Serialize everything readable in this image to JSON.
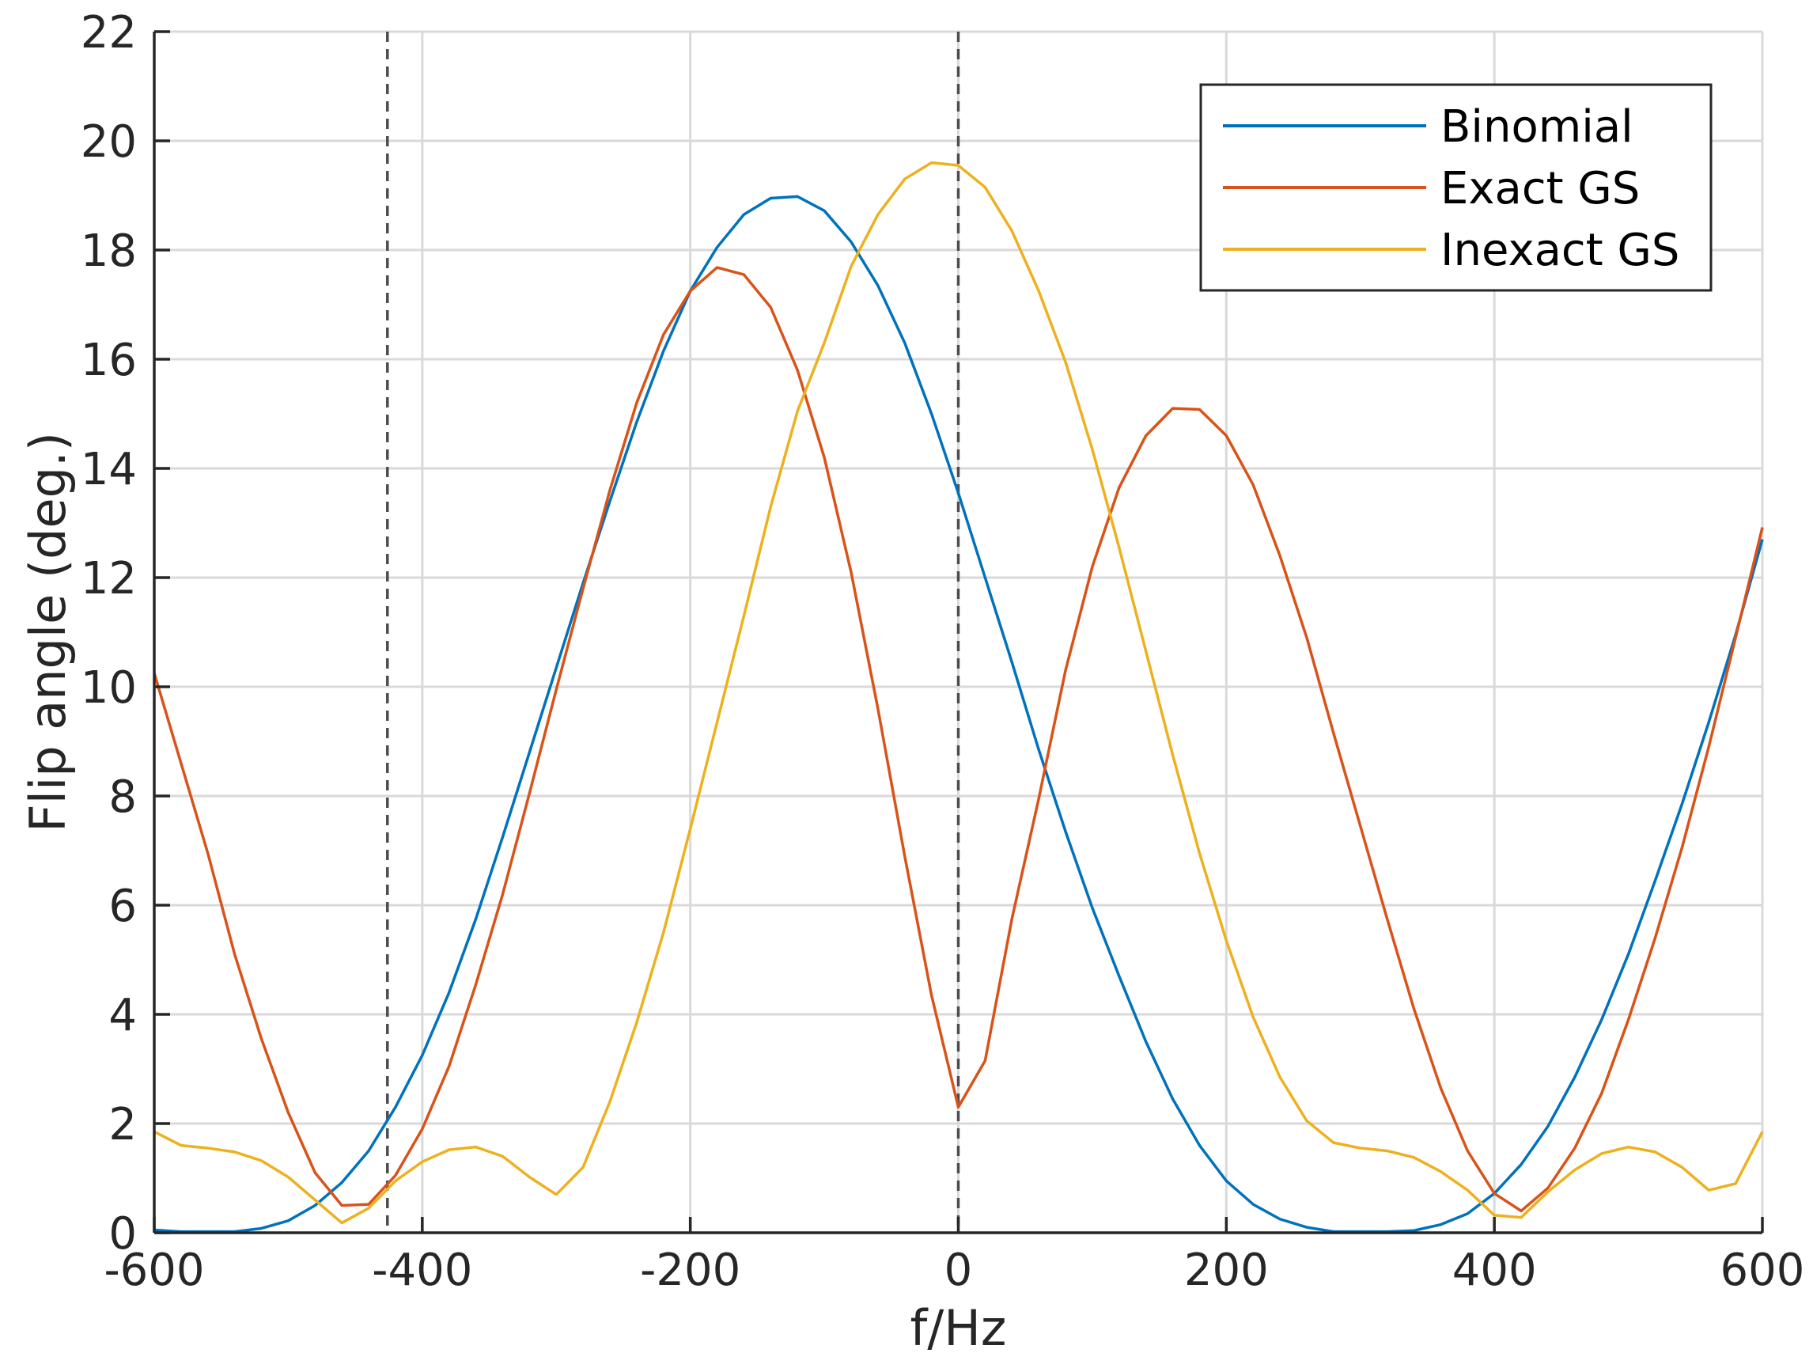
{
  "chart_data": {
    "type": "line",
    "title": "",
    "xlabel": "f/Hz",
    "ylabel": "Flip angle (deg.)",
    "xlim": [
      -600,
      600
    ],
    "ylim": [
      0,
      22
    ],
    "xticks": [
      -600,
      -400,
      -200,
      0,
      200,
      400,
      600
    ],
    "yticks": [
      0,
      2,
      4,
      6,
      8,
      10,
      12,
      14,
      16,
      18,
      20,
      22
    ],
    "xtick_labels": [
      "-600",
      "-400",
      "-200",
      "0",
      "200",
      "400",
      "600"
    ],
    "ytick_labels": [
      "0",
      "2",
      "4",
      "6",
      "8",
      "10",
      "12",
      "14",
      "16",
      "18",
      "20",
      "22"
    ],
    "grid": true,
    "legend_position": "top-right",
    "vertical_dashed_lines": [
      -426,
      0
    ],
    "series": [
      {
        "name": "Binomial",
        "color": "#0072BD",
        "points": [
          [
            -600,
            0.05
          ],
          [
            -580,
            0.02
          ],
          [
            -560,
            0.02
          ],
          [
            -540,
            0.02
          ],
          [
            -520,
            0.08
          ],
          [
            -500,
            0.22
          ],
          [
            -480,
            0.5
          ],
          [
            -460,
            0.92
          ],
          [
            -440,
            1.5
          ],
          [
            -420,
            2.3
          ],
          [
            -400,
            3.25
          ],
          [
            -380,
            4.4
          ],
          [
            -360,
            5.75
          ],
          [
            -340,
            7.25
          ],
          [
            -320,
            8.8
          ],
          [
            -300,
            10.35
          ],
          [
            -280,
            11.9
          ],
          [
            -260,
            13.4
          ],
          [
            -240,
            14.85
          ],
          [
            -220,
            16.15
          ],
          [
            -200,
            17.25
          ],
          [
            -180,
            18.05
          ],
          [
            -160,
            18.65
          ],
          [
            -140,
            18.95
          ],
          [
            -120,
            18.98
          ],
          [
            -100,
            18.72
          ],
          [
            -80,
            18.15
          ],
          [
            -60,
            17.35
          ],
          [
            -40,
            16.3
          ],
          [
            -20,
            15.0
          ],
          [
            0,
            13.55
          ],
          [
            20,
            12.0
          ],
          [
            40,
            10.45
          ],
          [
            60,
            8.85
          ],
          [
            80,
            7.35
          ],
          [
            100,
            5.95
          ],
          [
            120,
            4.7
          ],
          [
            140,
            3.5
          ],
          [
            160,
            2.45
          ],
          [
            180,
            1.6
          ],
          [
            200,
            0.95
          ],
          [
            220,
            0.52
          ],
          [
            240,
            0.25
          ],
          [
            260,
            0.1
          ],
          [
            280,
            0.02
          ],
          [
            300,
            0.02
          ],
          [
            320,
            0.02
          ],
          [
            340,
            0.04
          ],
          [
            360,
            0.15
          ],
          [
            380,
            0.35
          ],
          [
            400,
            0.72
          ],
          [
            420,
            1.25
          ],
          [
            440,
            1.95
          ],
          [
            460,
            2.85
          ],
          [
            480,
            3.9
          ],
          [
            500,
            5.1
          ],
          [
            520,
            6.45
          ],
          [
            540,
            7.85
          ],
          [
            560,
            9.35
          ],
          [
            580,
            10.95
          ],
          [
            600,
            12.7
          ]
        ]
      },
      {
        "name": "Exact GS",
        "color": "#D95319",
        "points": [
          [
            -600,
            10.25
          ],
          [
            -580,
            8.6
          ],
          [
            -560,
            6.95
          ],
          [
            -540,
            5.1
          ],
          [
            -520,
            3.55
          ],
          [
            -500,
            2.2
          ],
          [
            -480,
            1.1
          ],
          [
            -460,
            0.5
          ],
          [
            -440,
            0.52
          ],
          [
            -420,
            1.05
          ],
          [
            -400,
            1.9
          ],
          [
            -380,
            3.05
          ],
          [
            -360,
            4.55
          ],
          [
            -340,
            6.2
          ],
          [
            -320,
            8.05
          ],
          [
            -300,
            9.95
          ],
          [
            -280,
            11.8
          ],
          [
            -260,
            13.6
          ],
          [
            -240,
            15.2
          ],
          [
            -220,
            16.45
          ],
          [
            -200,
            17.25
          ],
          [
            -180,
            17.68
          ],
          [
            -160,
            17.55
          ],
          [
            -140,
            16.95
          ],
          [
            -120,
            15.8
          ],
          [
            -100,
            14.2
          ],
          [
            -80,
            12.1
          ],
          [
            -60,
            9.6
          ],
          [
            -40,
            6.9
          ],
          [
            -20,
            4.35
          ],
          [
            0,
            2.3
          ],
          [
            20,
            3.15
          ],
          [
            40,
            5.75
          ],
          [
            60,
            7.95
          ],
          [
            80,
            10.3
          ],
          [
            100,
            12.2
          ],
          [
            120,
            13.65
          ],
          [
            140,
            14.6
          ],
          [
            160,
            15.1
          ],
          [
            180,
            15.08
          ],
          [
            200,
            14.6
          ],
          [
            220,
            13.7
          ],
          [
            240,
            12.4
          ],
          [
            260,
            10.9
          ],
          [
            280,
            9.15
          ],
          [
            300,
            7.45
          ],
          [
            320,
            5.75
          ],
          [
            340,
            4.1
          ],
          [
            360,
            2.65
          ],
          [
            380,
            1.5
          ],
          [
            400,
            0.72
          ],
          [
            420,
            0.4
          ],
          [
            440,
            0.82
          ],
          [
            460,
            1.55
          ],
          [
            480,
            2.55
          ],
          [
            500,
            3.9
          ],
          [
            520,
            5.4
          ],
          [
            540,
            7.05
          ],
          [
            560,
            8.9
          ],
          [
            580,
            10.9
          ],
          [
            600,
            12.92
          ]
        ]
      },
      {
        "name": "Inexact GS",
        "color": "#EDB120",
        "points": [
          [
            -600,
            1.85
          ],
          [
            -580,
            1.6
          ],
          [
            -560,
            1.55
          ],
          [
            -540,
            1.48
          ],
          [
            -520,
            1.32
          ],
          [
            -500,
            1.02
          ],
          [
            -480,
            0.6
          ],
          [
            -460,
            0.18
          ],
          [
            -440,
            0.45
          ],
          [
            -420,
            0.95
          ],
          [
            -400,
            1.3
          ],
          [
            -380,
            1.52
          ],
          [
            -360,
            1.57
          ],
          [
            -340,
            1.4
          ],
          [
            -320,
            1.02
          ],
          [
            -300,
            0.7
          ],
          [
            -280,
            1.2
          ],
          [
            -260,
            2.4
          ],
          [
            -240,
            3.85
          ],
          [
            -220,
            5.5
          ],
          [
            -200,
            7.4
          ],
          [
            -180,
            9.35
          ],
          [
            -160,
            11.3
          ],
          [
            -140,
            13.3
          ],
          [
            -120,
            15.05
          ],
          [
            -100,
            16.3
          ],
          [
            -80,
            17.7
          ],
          [
            -60,
            18.65
          ],
          [
            -40,
            19.3
          ],
          [
            -20,
            19.6
          ],
          [
            0,
            19.55
          ],
          [
            20,
            19.15
          ],
          [
            40,
            18.35
          ],
          [
            60,
            17.25
          ],
          [
            80,
            15.95
          ],
          [
            100,
            14.35
          ],
          [
            120,
            12.55
          ],
          [
            140,
            10.65
          ],
          [
            160,
            8.75
          ],
          [
            180,
            6.95
          ],
          [
            200,
            5.35
          ],
          [
            220,
            3.95
          ],
          [
            240,
            2.85
          ],
          [
            260,
            2.05
          ],
          [
            280,
            1.65
          ],
          [
            300,
            1.55
          ],
          [
            320,
            1.5
          ],
          [
            340,
            1.38
          ],
          [
            360,
            1.12
          ],
          [
            380,
            0.78
          ],
          [
            400,
            0.32
          ],
          [
            420,
            0.28
          ],
          [
            440,
            0.75
          ],
          [
            460,
            1.15
          ],
          [
            480,
            1.45
          ],
          [
            500,
            1.57
          ],
          [
            520,
            1.48
          ],
          [
            540,
            1.2
          ],
          [
            560,
            0.78
          ],
          [
            580,
            0.9
          ],
          [
            600,
            1.85
          ]
        ]
      }
    ]
  }
}
